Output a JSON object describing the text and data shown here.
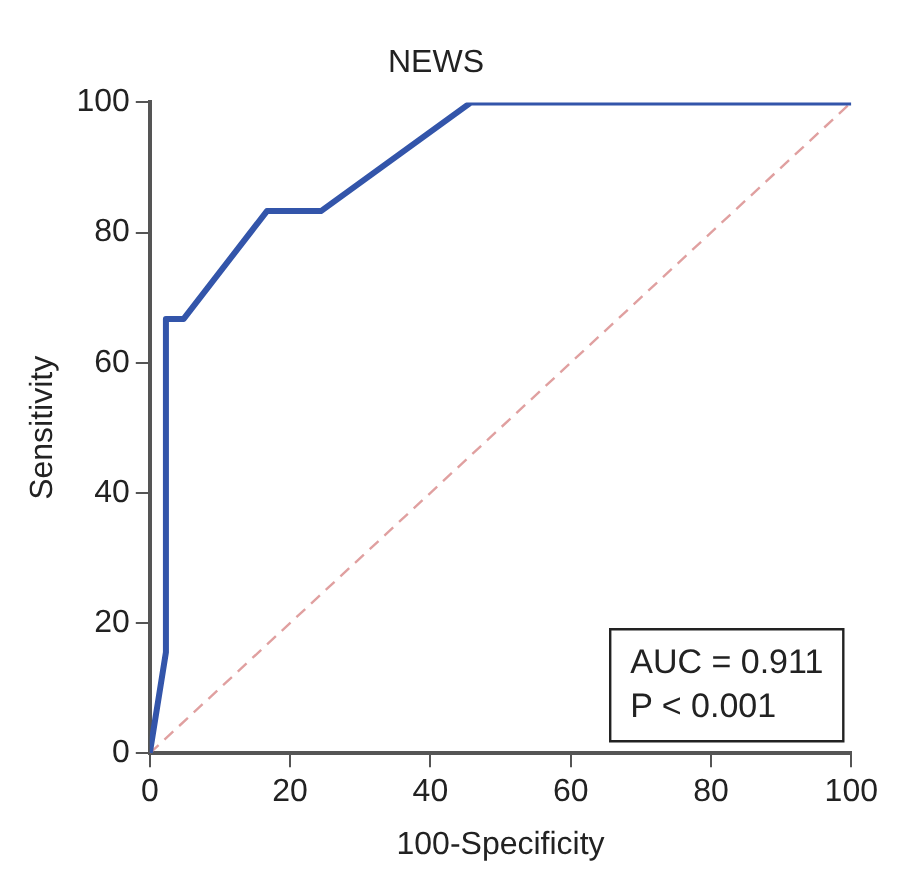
{
  "chart_data": {
    "type": "line",
    "title": "NEWS",
    "xlabel": "100-Specificity",
    "ylabel": "Sensitivity",
    "xlim": [
      0,
      100
    ],
    "xticks": [
      0,
      20,
      40,
      60,
      80,
      100
    ],
    "ylim": [
      0,
      100
    ],
    "yticks": [
      0,
      20,
      40,
      60,
      80,
      100
    ],
    "grid": false,
    "legend": false,
    "marker": "none",
    "series": [
      {
        "color": "#3355aa",
        "x": [
          0,
          2.3,
          2.3,
          4.8,
          16.7,
          24.4,
          45.8,
          100
        ],
        "values": [
          0,
          15.5,
          66.7,
          66.7,
          83.3,
          83.3,
          100,
          100
        ],
        "line_style": "solid"
      },
      {
        "color": "#e0a0a0",
        "x": [
          0,
          100
        ],
        "values": [
          0,
          100
        ],
        "line_style": "dashed"
      }
    ],
    "annotations": [
      "AUC = 0.911",
      "P < 0.001"
    ]
  }
}
